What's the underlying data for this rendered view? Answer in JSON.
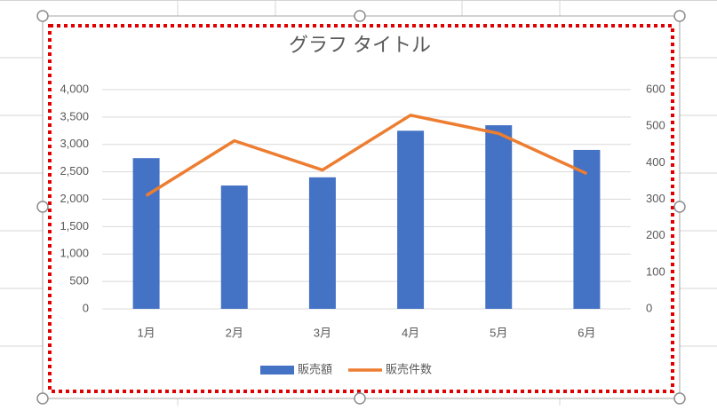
{
  "chart_data": {
    "type": "bar",
    "title": "グラフ タイトル",
    "categories": [
      "1月",
      "2月",
      "3月",
      "4月",
      "5月",
      "6月"
    ],
    "series": [
      {
        "name": "販売額",
        "type": "bar",
        "color": "#4472c4",
        "values": [
          2750,
          2250,
          2400,
          3250,
          3350,
          2900
        ]
      },
      {
        "name": "販売件数",
        "type": "line",
        "color": "#ed7d31",
        "axis": "y2",
        "values": [
          310,
          460,
          380,
          530,
          480,
          370
        ]
      }
    ],
    "ylim": [
      0,
      4000
    ],
    "yticks": [
      0,
      {
        "value": 500,
        "label": "500"
      },
      {
        "value": 1000,
        "label": "1,000"
      },
      {
        "value": 1500,
        "label": "1,500"
      },
      {
        "value": 2000,
        "label": "2,000"
      },
      {
        "value": 2500,
        "label": "2,500"
      },
      {
        "value": 3000,
        "label": "3,000"
      },
      {
        "value": 3500,
        "label": "3,500"
      },
      {
        "value": 4000,
        "label": "4,000"
      }
    ],
    "y2lim": [
      0,
      600
    ],
    "y2ticks": [
      0,
      100,
      200,
      300,
      400,
      500,
      600
    ],
    "grid": true,
    "legend": "bottom"
  }
}
